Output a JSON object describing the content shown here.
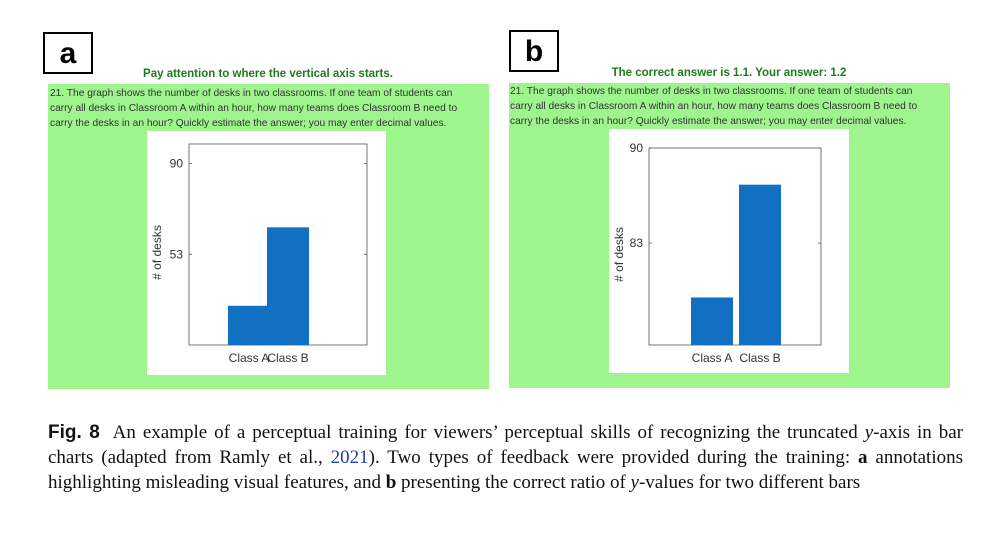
{
  "panels": [
    {
      "label": "a",
      "feedback": "Pay attention to where the vertical axis starts.",
      "question_lines": [
        "21. The graph shows the number of desks in two classrooms. If one team of students can",
        "carry all desks in Classroom A within an hour, how many teams does Classroom B need to",
        "carry the desks in an hour? Quickly estimate the answer; you may enter decimal values."
      ],
      "chart_data": {
        "type": "bar",
        "categories": [
          "Class A",
          "Class B"
        ],
        "values": [
          32,
          64
        ],
        "ylabel": "# of desks",
        "yticks": [
          53,
          90
        ],
        "ylim": [
          16,
          98
        ],
        "bar_color": "#1170c2"
      }
    },
    {
      "label": "b",
      "feedback": "The correct answer is 1.1. Your answer: 1.2",
      "question_lines": [
        "21. The graph shows the number of desks in two classrooms. If one team of students can",
        "carry all desks in Classroom A within an hour, how many teams does Classroom B need to",
        "carry the desks in an hour? Quickly estimate the answer; you may enter decimal values."
      ],
      "chart_data": {
        "type": "bar",
        "categories": [
          "Class A",
          "Class B"
        ],
        "values": [
          79,
          87.3
        ],
        "ylabel": "# of desks",
        "yticks": [
          83,
          90
        ],
        "ylim": [
          75.5,
          90
        ],
        "bar_color": "#1170c2"
      }
    }
  ],
  "caption": {
    "fig_label": "Fig. 8",
    "text_1": "An example of a perceptual training for viewers’ perceptual skills of recognizing the truncated ",
    "y_1": "y",
    "text_2": "-axis in bar charts (adapted from Ramly et al., ",
    "cite_year": "2021",
    "text_3": "). Two types of feedback were provided during the training: ",
    "bold_a": "a",
    "text_4": " annotations highlighting misleading visual features, and ",
    "bold_b": "b",
    "text_5": " presenting the correct ratio of ",
    "y_2": "y",
    "text_6": "-values for two different bars"
  }
}
